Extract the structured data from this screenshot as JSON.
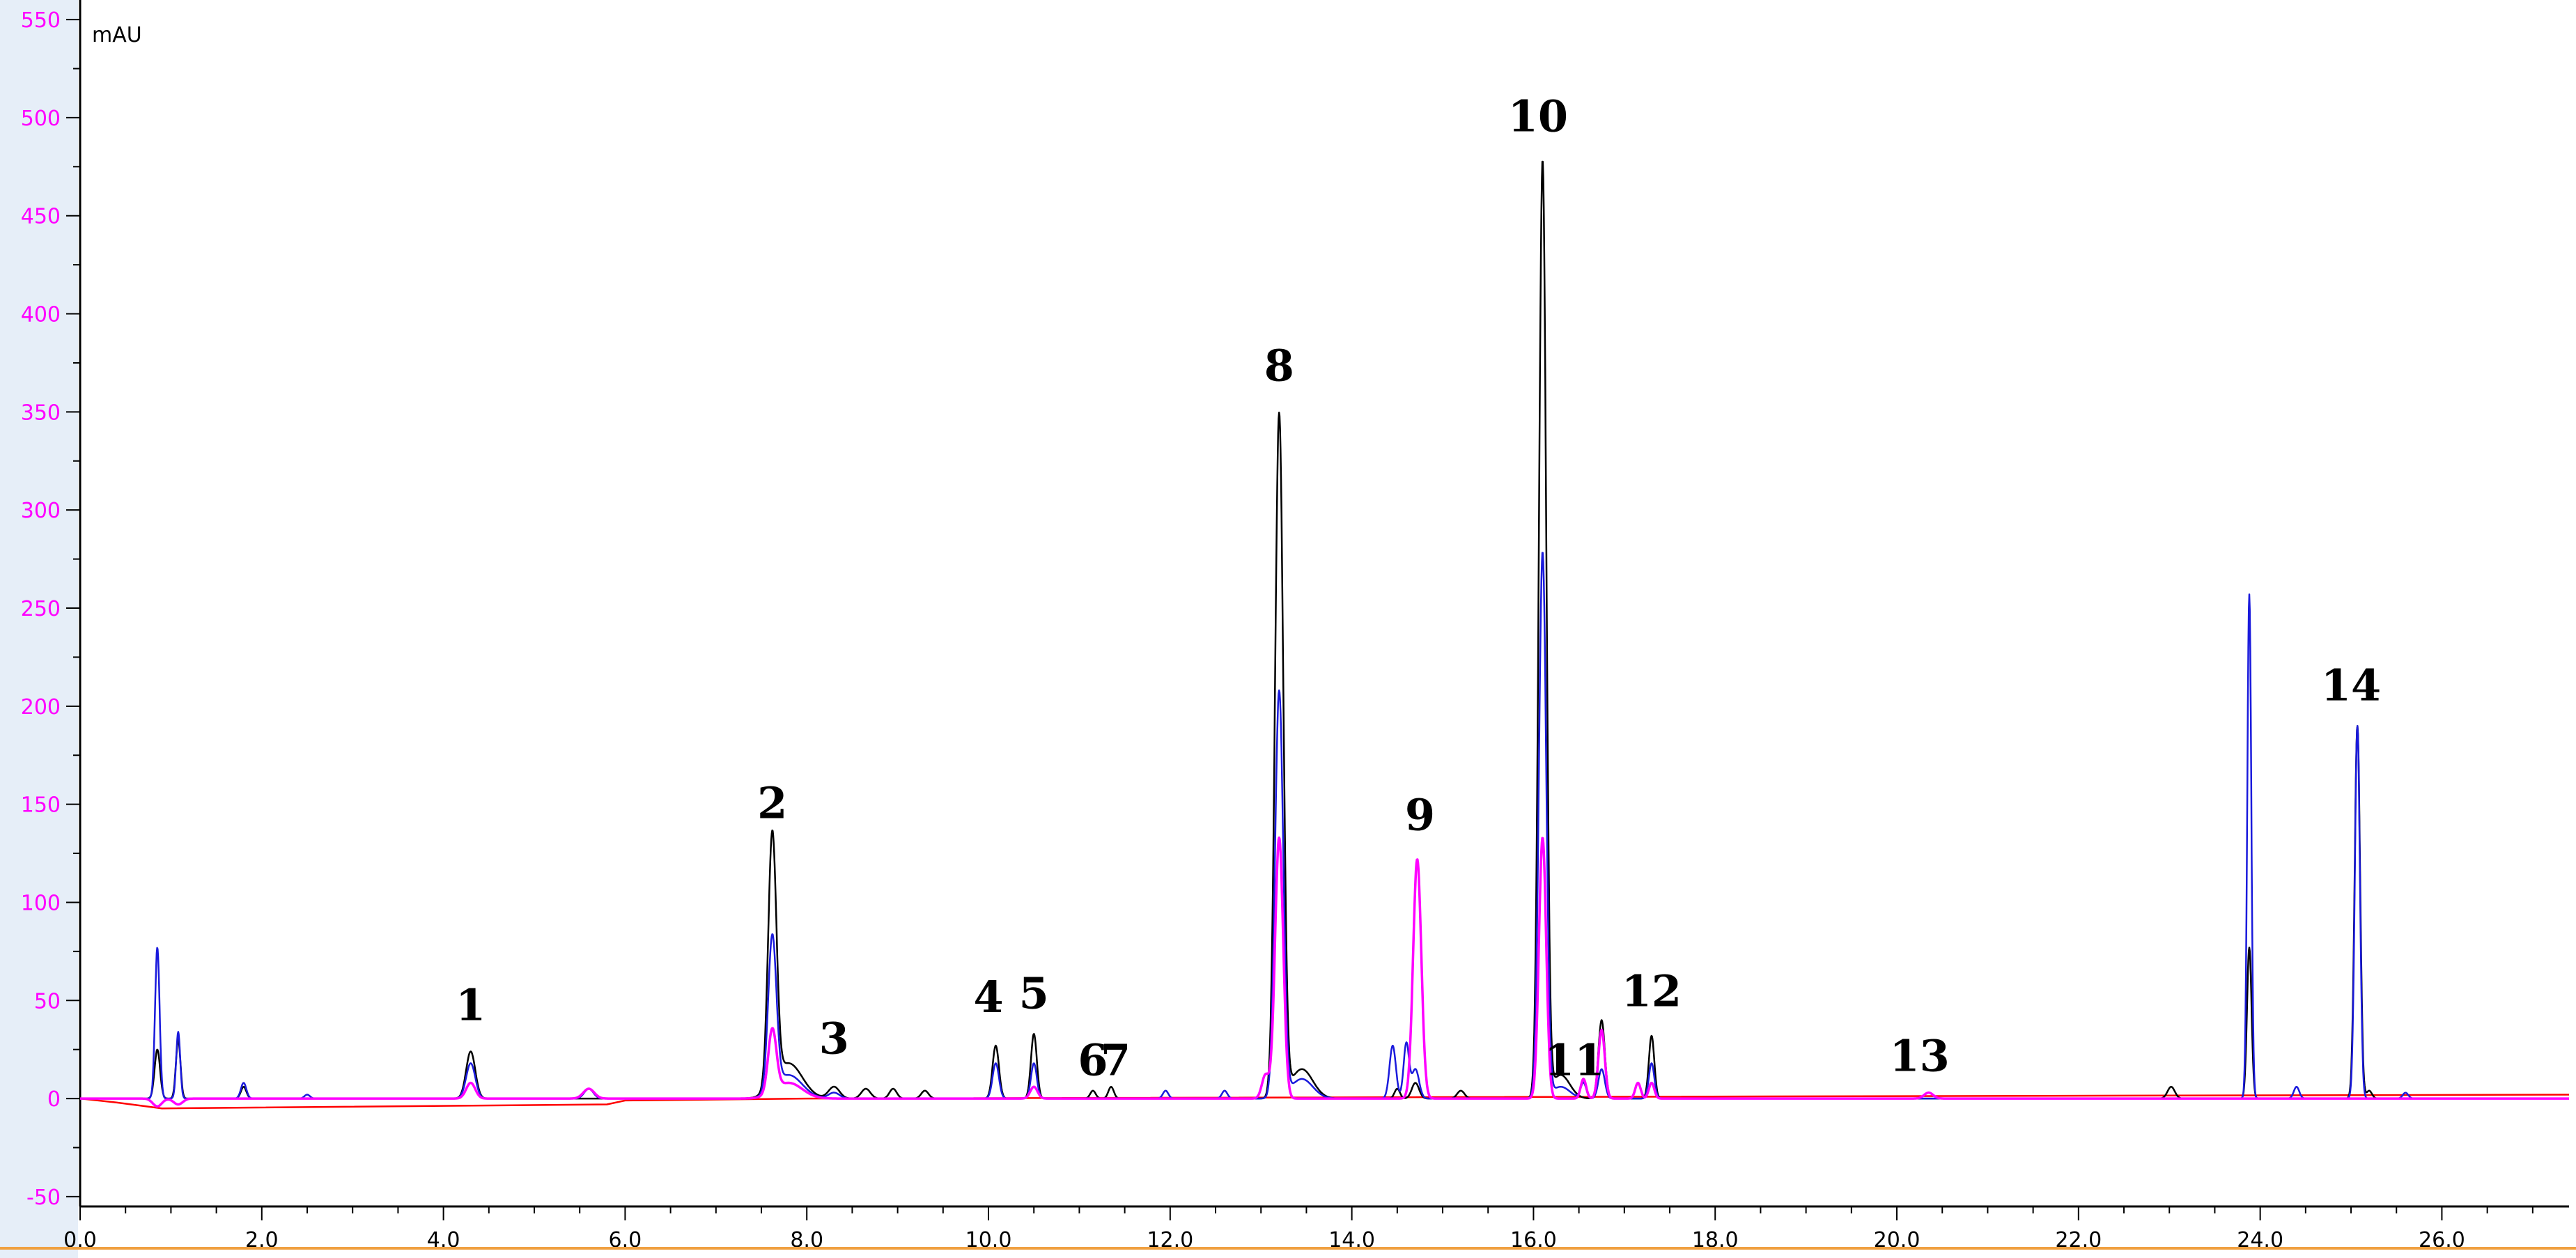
{
  "chart_data": {
    "type": "line",
    "title": "",
    "xlabel": "",
    "ylabel": "mAU",
    "xlim": [
      0.0,
      27.4
    ],
    "ylim": [
      -55,
      555
    ],
    "grid": false,
    "x_ticks": [
      "0.0",
      "2.0",
      "4.0",
      "6.0",
      "8.0",
      "10.0",
      "12.0",
      "14.0",
      "16.0",
      "18.0",
      "20.0",
      "22.0",
      "24.0",
      "26.0"
    ],
    "y_ticks": [
      "-50",
      "0",
      "50",
      "100",
      "150",
      "200",
      "250",
      "300",
      "350",
      "400",
      "450",
      "500",
      "550"
    ],
    "colors": {
      "black": "#000000",
      "blue": "#1a1adc",
      "magenta": "#ff00ff",
      "red": "#ff0000",
      "y_tick_text": "#ff00ff",
      "left_band": "#e6eef8",
      "bottom_rule": "#f0a040"
    },
    "series": [
      {
        "color": "#000000",
        "baseline": 0,
        "peaks": [
          [
            0.85,
            25,
            0.03
          ],
          [
            1.08,
            30,
            0.025
          ],
          [
            1.8,
            6,
            0.03
          ],
          [
            4.3,
            24,
            0.05
          ],
          [
            7.62,
            128,
            0.045
          ],
          [
            7.8,
            18,
            0.15
          ],
          [
            8.3,
            6,
            0.06
          ],
          [
            8.65,
            5,
            0.05
          ],
          [
            8.95,
            5,
            0.04
          ],
          [
            9.3,
            4,
            0.04
          ],
          [
            10.08,
            27,
            0.035
          ],
          [
            10.5,
            33,
            0.032
          ],
          [
            11.15,
            4,
            0.03
          ],
          [
            11.35,
            6,
            0.03
          ],
          [
            13.2,
            348,
            0.045
          ],
          [
            13.45,
            15,
            0.12
          ],
          [
            14.5,
            5,
            0.03
          ],
          [
            14.7,
            8,
            0.04
          ],
          [
            15.2,
            4,
            0.04
          ],
          [
            16.1,
            477,
            0.04
          ],
          [
            16.3,
            12,
            0.1
          ],
          [
            16.75,
            40,
            0.035
          ],
          [
            17.3,
            32,
            0.03
          ],
          [
            23.02,
            6,
            0.04
          ],
          [
            23.88,
            77,
            0.025
          ],
          [
            25.07,
            190,
            0.03
          ],
          [
            25.2,
            4,
            0.03
          ]
        ]
      },
      {
        "color": "#1a1adc",
        "baseline": 0,
        "peaks": [
          [
            0.85,
            77,
            0.025
          ],
          [
            1.08,
            34,
            0.022
          ],
          [
            1.8,
            8,
            0.03
          ],
          [
            2.5,
            2,
            0.03
          ],
          [
            4.3,
            18,
            0.05
          ],
          [
            5.6,
            5,
            0.05
          ],
          [
            7.62,
            78,
            0.045
          ],
          [
            7.8,
            12,
            0.15
          ],
          [
            8.3,
            3,
            0.06
          ],
          [
            10.08,
            18,
            0.035
          ],
          [
            10.5,
            18,
            0.032
          ],
          [
            11.95,
            4,
            0.03
          ],
          [
            12.6,
            4,
            0.03
          ],
          [
            13.2,
            207,
            0.045
          ],
          [
            13.45,
            10,
            0.12
          ],
          [
            14.45,
            27,
            0.035
          ],
          [
            14.6,
            28,
            0.03
          ],
          [
            14.7,
            15,
            0.04
          ],
          [
            16.1,
            278,
            0.04
          ],
          [
            16.3,
            6,
            0.1
          ],
          [
            16.55,
            8,
            0.03
          ],
          [
            16.75,
            15,
            0.035
          ],
          [
            17.3,
            18,
            0.03
          ],
          [
            23.88,
            257,
            0.022
          ],
          [
            24.4,
            6,
            0.03
          ],
          [
            25.07,
            190,
            0.028
          ],
          [
            25.6,
            3,
            0.03
          ]
        ]
      },
      {
        "color": "#ff00ff",
        "baseline": 0,
        "peaks": [
          [
            0.85,
            -4,
            0.05
          ],
          [
            1.08,
            -3,
            0.05
          ],
          [
            4.3,
            8,
            0.05
          ],
          [
            5.6,
            5,
            0.06
          ],
          [
            7.62,
            32,
            0.045
          ],
          [
            7.8,
            8,
            0.15
          ],
          [
            10.5,
            6,
            0.04
          ],
          [
            13.05,
            12,
            0.04
          ],
          [
            13.2,
            133,
            0.045
          ],
          [
            14.72,
            122,
            0.045
          ],
          [
            16.1,
            133,
            0.04
          ],
          [
            16.55,
            10,
            0.03
          ],
          [
            16.75,
            35,
            0.035
          ],
          [
            17.15,
            8,
            0.03
          ],
          [
            17.3,
            8,
            0.03
          ],
          [
            20.35,
            3,
            0.05
          ]
        ]
      },
      {
        "color": "#ff0000",
        "kind": "polyline",
        "points": [
          [
            0.0,
            0
          ],
          [
            0.4,
            -2
          ],
          [
            0.9,
            -5
          ],
          [
            5.8,
            -3
          ],
          [
            6.0,
            -1
          ],
          [
            8.0,
            0
          ],
          [
            27.4,
            2
          ]
        ]
      }
    ],
    "peak_labels": [
      {
        "text": "1",
        "x": 4.3,
        "y": 40
      },
      {
        "text": "2",
        "x": 7.62,
        "y": 143
      },
      {
        "text": "3",
        "x": 8.3,
        "y": 23
      },
      {
        "text": "4",
        "x": 10.0,
        "y": 44
      },
      {
        "text": "5",
        "x": 10.5,
        "y": 46
      },
      {
        "text": "6",
        "x": 11.15,
        "y": 12
      },
      {
        "text": "7",
        "x": 11.4,
        "y": 12
      },
      {
        "text": "8",
        "x": 13.2,
        "y": 366
      },
      {
        "text": "9",
        "x": 14.75,
        "y": 137
      },
      {
        "text": "10",
        "x": 16.05,
        "y": 493
      },
      {
        "text": "11",
        "x": 16.45,
        "y": 12
      },
      {
        "text": "12",
        "x": 17.3,
        "y": 47
      },
      {
        "text": "13",
        "x": 20.25,
        "y": 14
      },
      {
        "text": "14",
        "x": 25.0,
        "y": 203
      }
    ]
  }
}
